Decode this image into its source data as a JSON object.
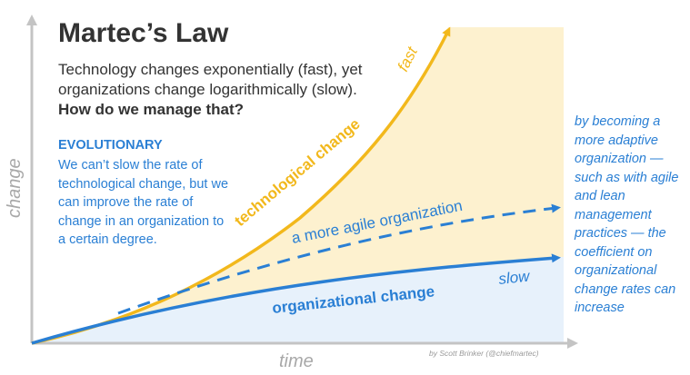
{
  "title": "Martec’s Law",
  "intro": {
    "text": "Technology changes exponentially (fast), yet organizations change logarithmically (slow).",
    "emphasis": "How do we manage that?"
  },
  "evolutionary": {
    "heading": "EVOLUTIONARY",
    "body": "We can’t slow the rate of technological change, but we can improve the rate of change in an organization to a certain degree."
  },
  "side_note": "by becoming a more adaptive organization — such as with agile and lean management practices — the coefficient on organizational change rates can increase",
  "axes": {
    "y_label": "change",
    "x_label": "time"
  },
  "curves": {
    "technological": {
      "label": "technological change",
      "end_label": "fast"
    },
    "agile": {
      "label": "a more agile organization"
    },
    "organizational": {
      "label": "organizational change",
      "end_label": "slow"
    }
  },
  "credit": "by Scott Brinker (@chiefmartec)",
  "colors": {
    "yellow": "#f2b81c",
    "yellow_fill": "#fdf1cf",
    "blue": "#2a7fd4",
    "blue_fill": "#e7f1fb",
    "axis": "#c4c4c4",
    "title": "#333333"
  }
}
